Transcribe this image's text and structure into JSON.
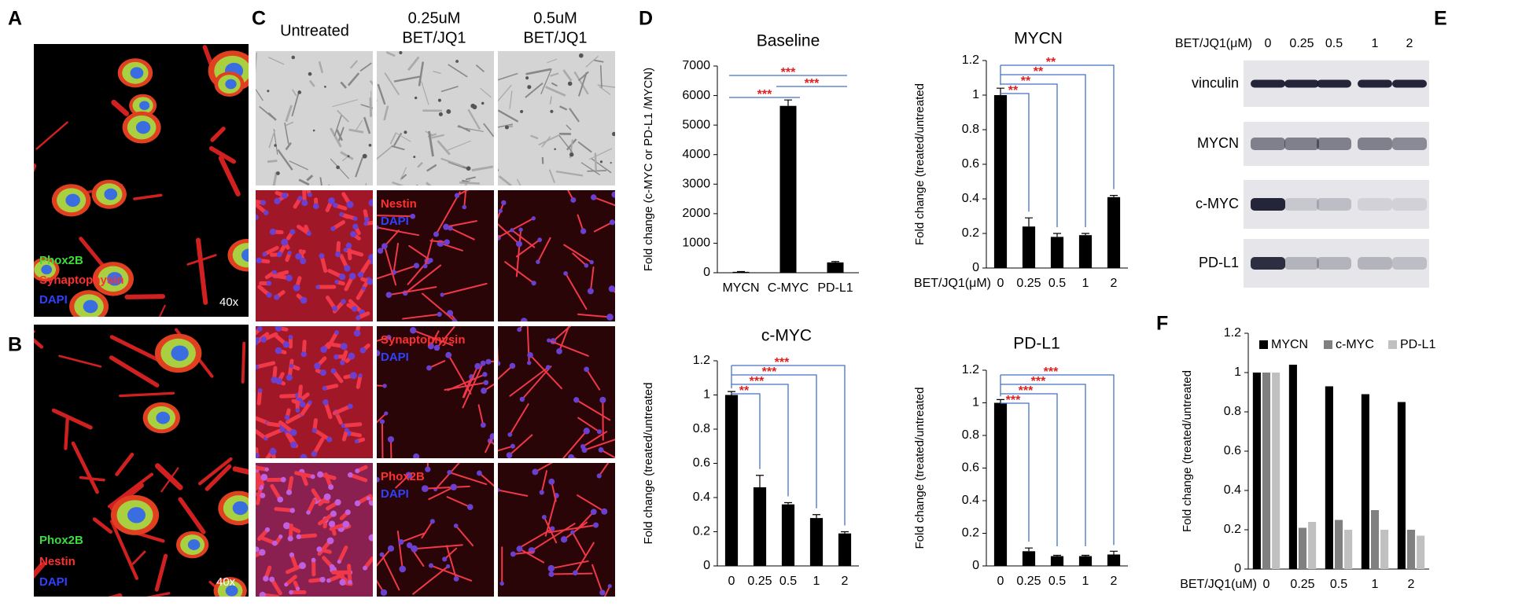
{
  "panels": {
    "A": {
      "label": "A",
      "stains": [
        "Phox2B",
        "Synaptophysin",
        "DAPI"
      ],
      "magnification": "40x"
    },
    "B": {
      "label": "B",
      "stains": [
        "Phox2B",
        "Nestin",
        "DAPI"
      ],
      "magnification": "40x"
    },
    "C": {
      "label": "C",
      "columns": [
        [
          "Untreated"
        ],
        [
          "0.25uM",
          "BET/JQ1"
        ],
        [
          "0.5uM",
          "BET/JQ1"
        ]
      ],
      "row_stains": [
        [
          "Nestin",
          "DAPI"
        ],
        [
          "Synaptophysin",
          "DAPI"
        ],
        [
          "Phox2B",
          "DAPI"
        ]
      ]
    },
    "D": {
      "label": "D"
    },
    "E": {
      "label": "E",
      "dose_label": "BET/JQ1(μM)",
      "lanes": [
        "0",
        "0.25",
        "0.5",
        "1",
        "2"
      ],
      "rows": [
        "vinculin",
        "MYCN",
        "c-MYC",
        "PD-L1"
      ]
    },
    "F": {
      "label": "F"
    }
  },
  "chart_data": [
    {
      "type": "bar",
      "title": "Baseline",
      "y_label": "Fold change (c-MYC or PD-L1 /MYCN)",
      "categories": [
        "MYCN",
        "C-MYC",
        "PD-L1"
      ],
      "values": [
        30,
        5650,
        350
      ],
      "errors": [
        10,
        200,
        30
      ],
      "color": "#000000",
      "ylim": [
        0,
        7000
      ],
      "yticks": [
        0,
        1000,
        2000,
        3000,
        4000,
        5000,
        6000,
        7000
      ],
      "annotations": [
        "***",
        "***",
        "***"
      ]
    },
    {
      "type": "bar",
      "title": "MYCN",
      "y_label": "Fold change (treated/untreated",
      "x_label": "BET/JQ1(μM)",
      "categories": [
        "0",
        "0.25",
        "0.5",
        "1",
        "2"
      ],
      "values": [
        1.0,
        0.24,
        0.18,
        0.19,
        0.41
      ],
      "errors": [
        0.04,
        0.05,
        0.02,
        0.01,
        0.01
      ],
      "color": "#000000",
      "ylim": [
        0,
        1.2
      ],
      "yticks": [
        0,
        0.2,
        0.4,
        0.6,
        0.8,
        1,
        1.2
      ],
      "annotations": [
        "**",
        "**",
        "**",
        "**"
      ]
    },
    {
      "type": "bar",
      "title": "c-MYC",
      "y_label": "Fold change (treated/untreated",
      "categories": [
        "0",
        "0.25",
        "0.5",
        "1",
        "2"
      ],
      "values": [
        1.0,
        0.46,
        0.36,
        0.28,
        0.19
      ],
      "errors": [
        0.02,
        0.07,
        0.01,
        0.02,
        0.01
      ],
      "color": "#000000",
      "ylim": [
        0,
        1.2
      ],
      "yticks": [
        0,
        0.2,
        0.4,
        0.6,
        0.8,
        1,
        1.2
      ],
      "annotations": [
        "**",
        "***",
        "***",
        "***"
      ]
    },
    {
      "type": "bar",
      "title": "PD-L1",
      "y_label": "Fold change (treated/untreated",
      "categories": [
        "0",
        "0.25",
        "0.5",
        "1",
        "2"
      ],
      "values": [
        1.0,
        0.09,
        0.06,
        0.06,
        0.07
      ],
      "errors": [
        0.02,
        0.02,
        0.005,
        0.005,
        0.02
      ],
      "color": "#000000",
      "ylim": [
        0,
        1.2
      ],
      "yticks": [
        0,
        0.2,
        0.4,
        0.6,
        0.8,
        1,
        1.2
      ],
      "annotations": [
        "***",
        "***",
        "***",
        "***"
      ]
    },
    {
      "type": "bar",
      "y_label": "Fold change (treated/untreated",
      "x_label": "BET/JQ1(uM)",
      "categories": [
        "0",
        "0.25",
        "0.5",
        "1",
        "2"
      ],
      "series": [
        {
          "name": "MYCN",
          "color": "#000000",
          "values": [
            1,
            1.04,
            0.93,
            0.89,
            0.85
          ]
        },
        {
          "name": "c-MYC",
          "color": "#808080",
          "values": [
            1,
            0.21,
            0.25,
            0.3,
            0.2
          ]
        },
        {
          "name": "PD-L1",
          "color": "#c0c0c0",
          "values": [
            1,
            0.24,
            0.2,
            0.2,
            0.17
          ]
        }
      ],
      "ylim": [
        0,
        1.2
      ],
      "yticks": [
        0,
        0.2,
        0.4,
        0.6,
        0.8,
        1,
        1.2
      ],
      "legend": "top"
    }
  ]
}
